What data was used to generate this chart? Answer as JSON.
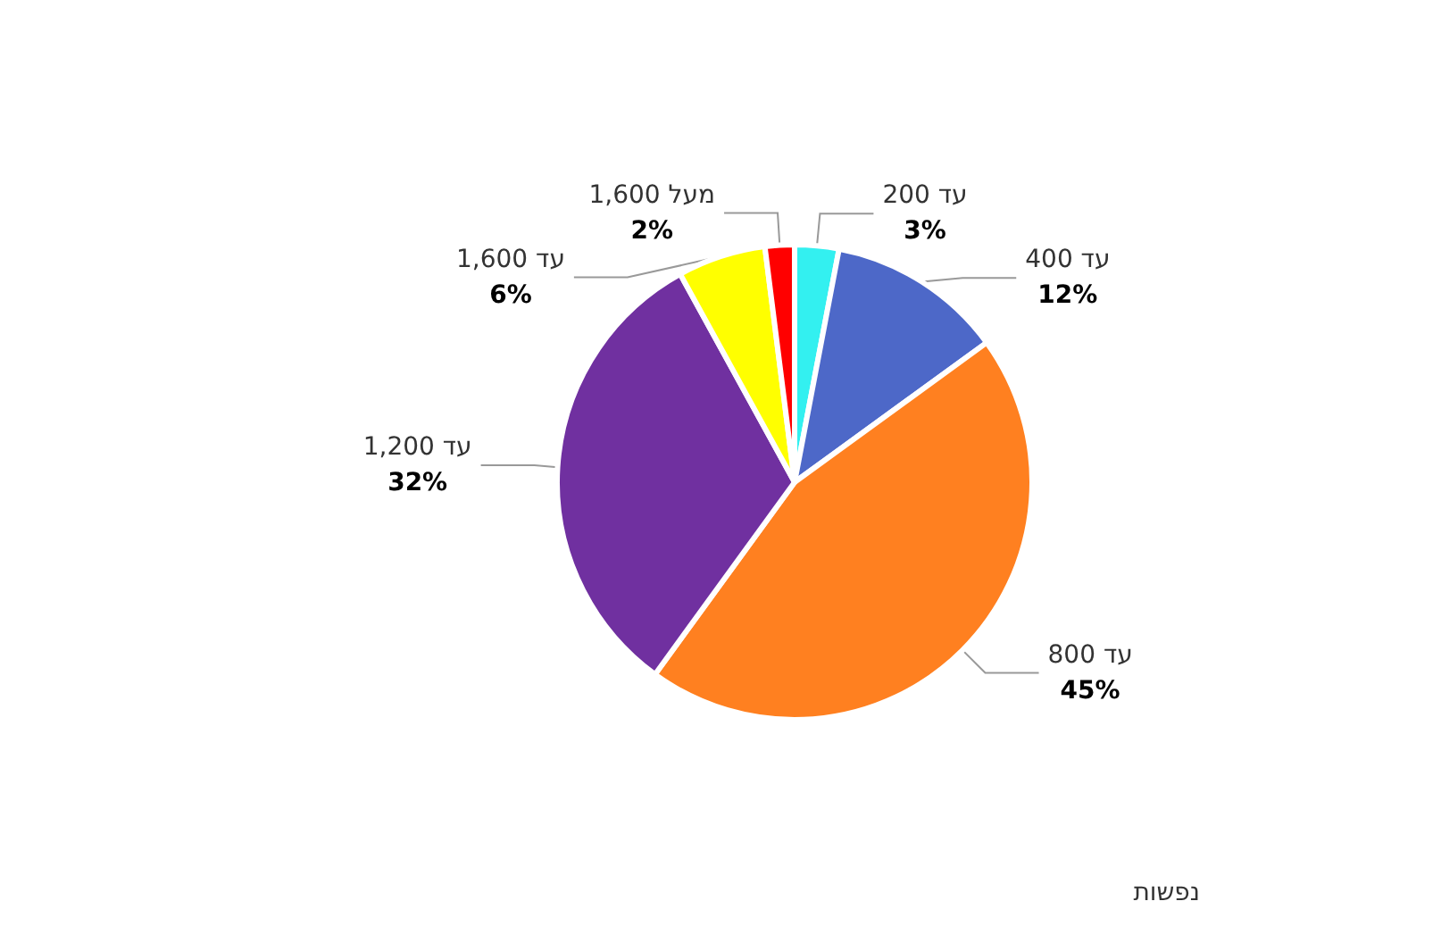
{
  "chart_data": {
    "type": "pie",
    "categories": [
      "עד 200",
      "עד 400",
      "עד 800",
      "עד 1,200",
      "עד 1,600",
      "מעל 1,600"
    ],
    "values": [
      3,
      12,
      45,
      32,
      6,
      2
    ],
    "value_labels": [
      "3%",
      "12%",
      "45%",
      "32%",
      "6%",
      "2%"
    ],
    "colors": [
      "#33f0f0",
      "#4d68c8",
      "#ff8020",
      "#7030a0",
      "#ffff00",
      "#ff0000"
    ],
    "legend": false,
    "annotations": [
      "נפשות"
    ]
  }
}
